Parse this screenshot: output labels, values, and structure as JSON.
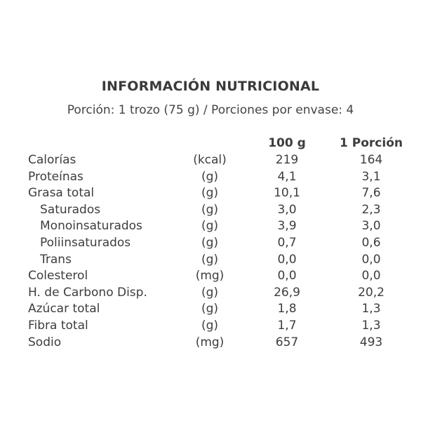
{
  "title": "INFORMACIÓN NUTRICIONAL",
  "portion_line": "Porción:  1 trozo (75 g) / Porciones por envase: 4",
  "columns": {
    "per_100g": "100 g",
    "per_portion": "1 Porción"
  },
  "rows": [
    {
      "name": "Calorías",
      "unit": "(kcal)",
      "per_100g": "219",
      "per_portion": "164",
      "sub": false
    },
    {
      "name": "Proteínas",
      "unit": "(g)",
      "per_100g": "4,1",
      "per_portion": "3,1",
      "sub": false
    },
    {
      "name": "Grasa total",
      "unit": "(g)",
      "per_100g": "10,1",
      "per_portion": "7,6",
      "sub": false
    },
    {
      "name": "Saturados",
      "unit": "(g)",
      "per_100g": "3,0",
      "per_portion": "2,3",
      "sub": true
    },
    {
      "name": "Monoinsaturados",
      "unit": "(g)",
      "per_100g": "3,9",
      "per_portion": "3,0",
      "sub": true
    },
    {
      "name": "Poliinsaturados",
      "unit": "(g)",
      "per_100g": "0,7",
      "per_portion": "0,6",
      "sub": true
    },
    {
      "name": "Trans",
      "unit": "(g)",
      "per_100g": "0,0",
      "per_portion": "0,0",
      "sub": true
    },
    {
      "name": "Colesterol",
      "unit": "(mg)",
      "per_100g": "0,0",
      "per_portion": "0,0",
      "sub": false
    },
    {
      "name": "H. de Carbono Disp.",
      "unit": "(g)",
      "per_100g": "26,9",
      "per_portion": "20,2",
      "sub": false
    },
    {
      "name": "Azúcar total",
      "unit": "(g)",
      "per_100g": "1,8",
      "per_portion": "1,3",
      "sub": false
    },
    {
      "name": "Fibra total",
      "unit": "(g)",
      "per_100g": "1,7",
      "per_portion": "1,3",
      "sub": false
    },
    {
      "name": "Sodio",
      "unit": "(mg)",
      "per_100g": "657",
      "per_portion": "493",
      "sub": false
    }
  ]
}
